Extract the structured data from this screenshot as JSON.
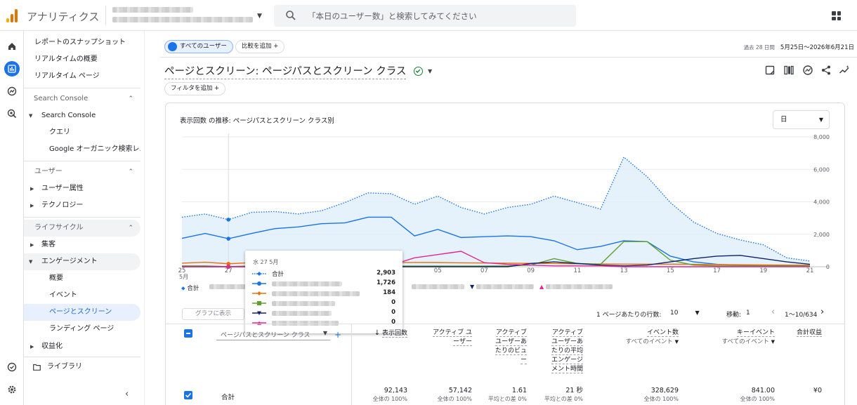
{
  "app": {
    "title": "アナリティクス"
  },
  "search": {
    "placeholder": "「本日のユーザー数」と検索してみてください"
  },
  "sidebar": {
    "items": [
      {
        "label": "レポートのスナップショット"
      },
      {
        "label": "リアルタイムの概要"
      },
      {
        "label": "リアルタイム ページ"
      },
      {
        "label": "Search Console"
      },
      {
        "label": "Search Console"
      },
      {
        "label": "クエリ"
      },
      {
        "label": "Google オーガニック検索レ..."
      },
      {
        "label": "ユーザー"
      },
      {
        "label": "ユーザー属性"
      },
      {
        "label": "テクノロジー"
      },
      {
        "label": "ライフサイクル"
      },
      {
        "label": "集客"
      },
      {
        "label": "エンゲージメント"
      },
      {
        "label": "概要"
      },
      {
        "label": "イベント"
      },
      {
        "label": "ページとスクリーン"
      },
      {
        "label": "ランディング ページ"
      },
      {
        "label": "収益化"
      },
      {
        "label": "ライブラリ"
      }
    ]
  },
  "filters": {
    "all_users": "すべてのユーザー",
    "add_comparison": "比較を追加 +",
    "add_filter": "フィルタを追加 +"
  },
  "date_range": {
    "period": "過去 28 日間",
    "range": "5月25日～2026年6月21日"
  },
  "page_title": "ページとスクリーン: ページパスとスクリーン クラス",
  "chart_card": {
    "title": "表示回数 の推移: ページパスとスクリーン クラス別",
    "granularity": "日"
  },
  "chart_data": {
    "type": "line",
    "x": [
      "25",
      "26",
      "27",
      "28",
      "29",
      "30",
      "31",
      "01",
      "02",
      "03",
      "04",
      "05",
      "06",
      "07",
      "08",
      "09",
      "10",
      "11",
      "12",
      "13",
      "14",
      "15",
      "16",
      "17",
      "18",
      "19",
      "20",
      "21"
    ],
    "x_tick_labels": [
      "25",
      "27",
      "29",
      "31",
      "02",
      "05",
      "07",
      "09",
      "11",
      "13",
      "15",
      "17",
      "19",
      "21"
    ],
    "x_month_label": "5月",
    "y_tick_labels": [
      "0",
      "2,000",
      "4,000",
      "6,000",
      "8,000"
    ],
    "ylim": [
      0,
      8000
    ],
    "series": [
      {
        "name": "合計",
        "color": "#1a73e8",
        "style": "dotted-area",
        "values": [
          3050,
          3250,
          2903,
          3350,
          3400,
          3250,
          3450,
          3950,
          4550,
          4500,
          3850,
          4350,
          3650,
          3250,
          3650,
          3850,
          4350,
          3950,
          3550,
          6750,
          5550,
          3950,
          2750,
          2050,
          1650,
          1350,
          550,
          350
        ]
      },
      {
        "name": "",
        "color": "#1a73e8",
        "values": [
          1750,
          2050,
          1726,
          2050,
          2350,
          2450,
          2650,
          2700,
          3050,
          3050,
          1900,
          2300,
          1800,
          1850,
          1900,
          1850,
          1600,
          1050,
          1250,
          1600,
          1550,
          650,
          300,
          150,
          100,
          80,
          60,
          50
        ]
      },
      {
        "name": "",
        "color": "#e8710a",
        "values": [
          220,
          280,
          184,
          250,
          250,
          250,
          240,
          240,
          240,
          250,
          260,
          260,
          240,
          230,
          220,
          210,
          200,
          180,
          170,
          160,
          160,
          160,
          150,
          130,
          120,
          110,
          100,
          90
        ]
      },
      {
        "name": "",
        "color": "#5e9e2a",
        "values": [
          50,
          50,
          0,
          50,
          50,
          50,
          40,
          40,
          40,
          40,
          40,
          40,
          40,
          40,
          50,
          100,
          500,
          200,
          150,
          1550,
          1550,
          400,
          100,
          50,
          50,
          50,
          50,
          50
        ]
      },
      {
        "name": "",
        "color": "#12216b",
        "values": [
          0,
          0,
          0,
          0,
          0,
          0,
          0,
          0,
          0,
          0,
          0,
          0,
          0,
          0,
          0,
          200,
          300,
          200,
          100,
          50,
          100,
          300,
          500,
          650,
          700,
          500,
          300,
          150
        ]
      },
      {
        "name": "",
        "color": "#e52592",
        "values": [
          0,
          0,
          0,
          0,
          0,
          0,
          0,
          50,
          50,
          100,
          550,
          750,
          950,
          250,
          150,
          100,
          50,
          50,
          50,
          0,
          0,
          0,
          0,
          0,
          0,
          0,
          0,
          0
        ]
      }
    ],
    "legend_total": "合計"
  },
  "tooltip": {
    "title": "水 27 5月",
    "total_label": "合計",
    "values": [
      "2,903",
      "1,726",
      "184",
      "0",
      "0",
      "0"
    ]
  },
  "table": {
    "show_in_graph": "グラフに表示",
    "rows_per_page_label": "1 ページあたりの行数:",
    "rows_per_page": "10",
    "goto_label": "移動:",
    "goto_value": "1",
    "pagination": "1～10/634",
    "dimension": "ページパスとスクリーン クラス",
    "columns": [
      {
        "label": "表示回数",
        "sub": ""
      },
      {
        "label": "アクティブ ユーザー",
        "sub": ""
      },
      {
        "label": "アクティブ ユーザーあたりのビュー",
        "sub": ""
      },
      {
        "label": "アクティブ ユーザーあたりの平均エンゲージメント時間",
        "sub": ""
      },
      {
        "label": "イベント数",
        "sub": "すべてのイベント"
      },
      {
        "label": "キーイベント",
        "sub": "すべてのイベント"
      },
      {
        "label": "合計収益",
        "sub": ""
      }
    ],
    "total": {
      "label": "合計",
      "cells": [
        {
          "value": "92,143",
          "pct": "全体の 100%"
        },
        {
          "value": "57,142",
          "pct": "全体の 100%"
        },
        {
          "value": "1.61",
          "pct": "平均との差 0%"
        },
        {
          "value": "21 秒",
          "pct": "平均との差 0%"
        },
        {
          "value": "328,629",
          "pct": "全体の 100%"
        },
        {
          "value": "841.00",
          "pct": "全体の 100%"
        },
        {
          "value": "¥0",
          "pct": ""
        }
      ]
    }
  }
}
